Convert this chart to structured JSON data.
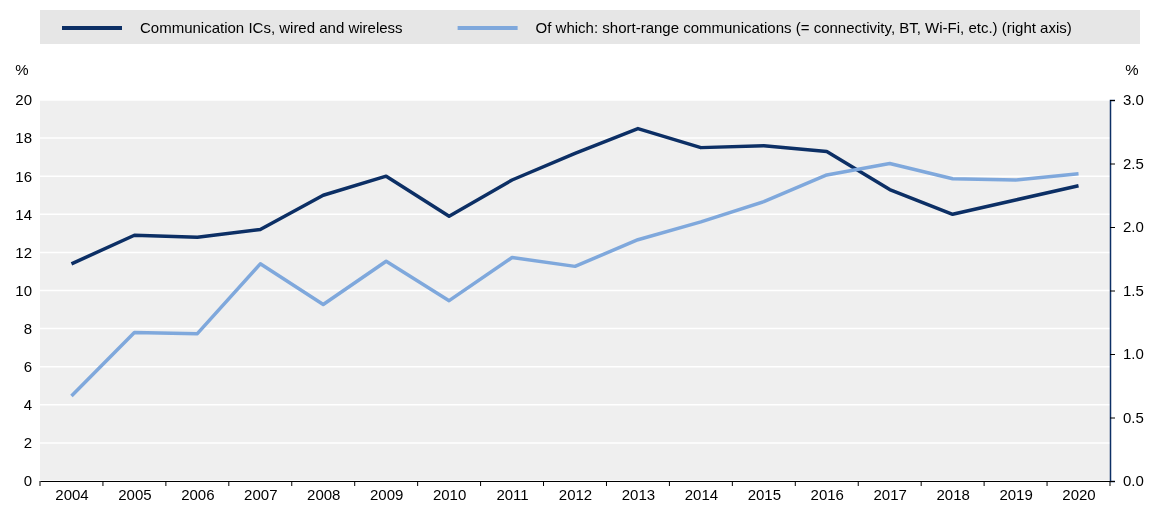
{
  "chart_data": {
    "type": "line",
    "categories": [
      "2004",
      "2005",
      "2006",
      "2007",
      "2008",
      "2009",
      "2010",
      "2011",
      "2012",
      "2013",
      "2014",
      "2015",
      "2016",
      "2017",
      "2018",
      "2019",
      "2020"
    ],
    "ylabel": "%",
    "y2label": "%",
    "ylim": [
      0,
      20
    ],
    "yticks": [
      0,
      2,
      4,
      6,
      8,
      10,
      12,
      14,
      16,
      18,
      20
    ],
    "y2lim": [
      0,
      3
    ],
    "y2ticks": [
      {
        "value": 0,
        "label": "0.0"
      },
      {
        "value": 0.5,
        "label": "0.5"
      },
      {
        "value": 1,
        "label": "1.0"
      },
      {
        "value": 1.5,
        "label": "1.5"
      },
      {
        "value": 2,
        "label": "2.0"
      },
      {
        "value": 2.5,
        "label": "2.5"
      },
      {
        "value": 3,
        "label": "3.0"
      }
    ],
    "grid": "y",
    "legend": "top",
    "marker": "none",
    "line_style": "solid",
    "series": [
      {
        "name": "Communication ICs, wired and wireless",
        "color": "#0c2f65",
        "values": [
          11.4,
          12.9,
          12.8,
          13.2,
          15.0,
          16.0,
          13.9,
          15.8,
          17.2,
          18.5,
          17.5,
          17.6,
          17.3,
          15.3,
          14.0,
          14.75,
          15.5
        ]
      },
      {
        "name": "Of which: short-range communications (= connectivity, BT, Wi-Fi, etc.) (right axis)",
        "color": "#7fa8dc",
        "axis": "y2",
        "values": [
          0.67,
          1.17,
          1.16,
          1.71,
          1.39,
          1.73,
          1.42,
          1.76,
          1.69,
          1.9,
          2.04,
          2.2,
          2.41,
          2.5,
          2.38,
          2.37,
          2.42
        ]
      }
    ]
  }
}
